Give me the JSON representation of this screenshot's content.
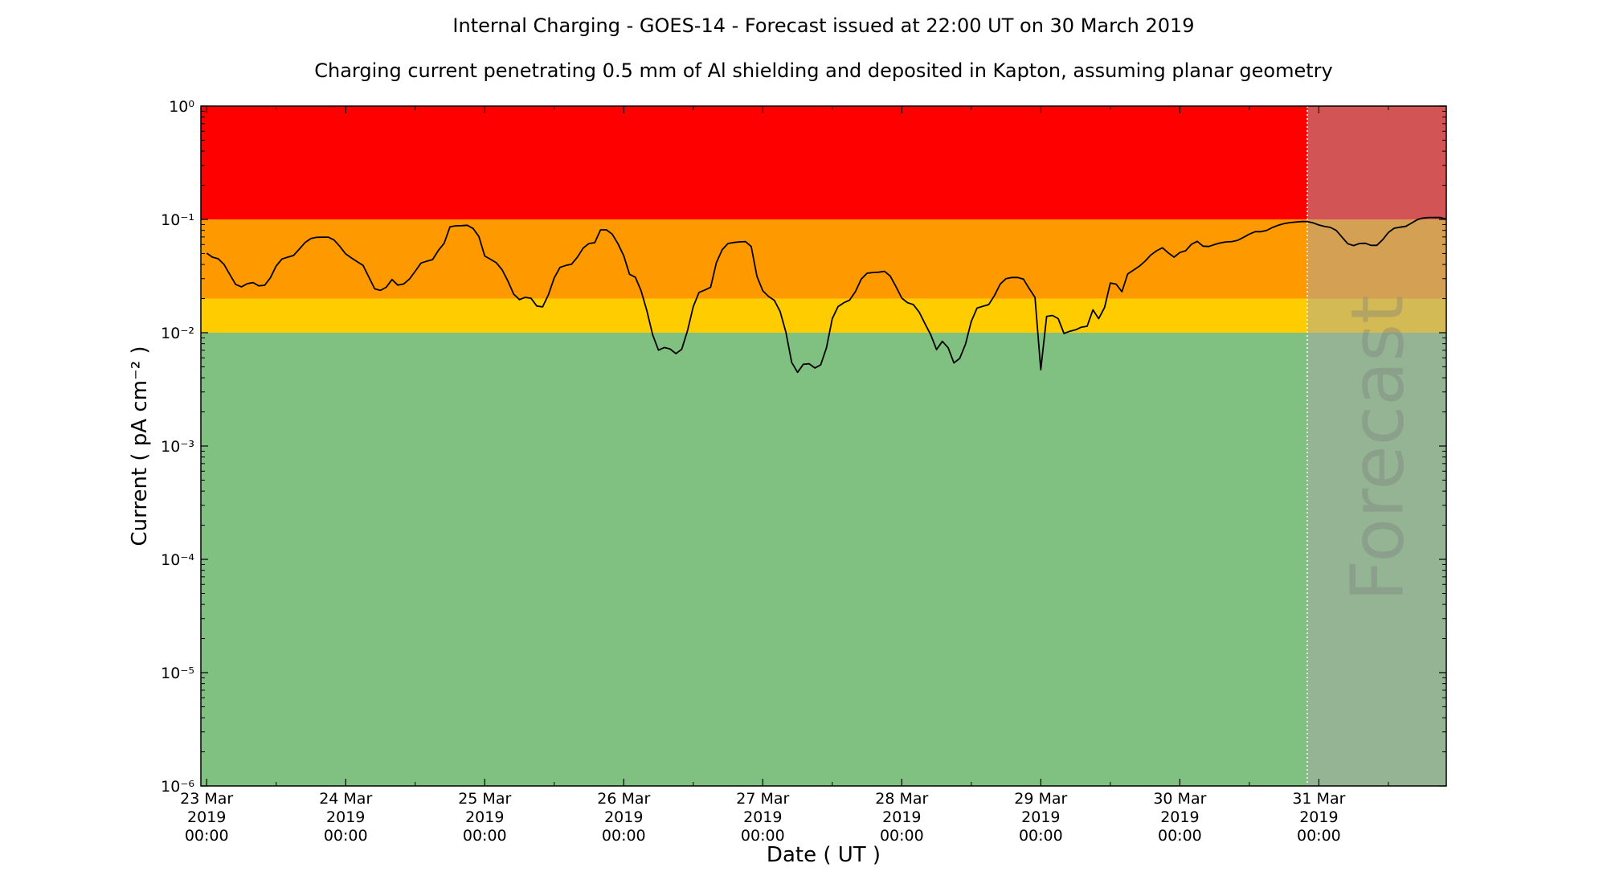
{
  "chart_data": {
    "type": "line",
    "title": "Internal Charging - GOES-14 - Forecast issued at 22:00 UT on 30 March 2019",
    "subtitle": "Charging current penetrating 0.5 mm of Al shielding and deposited in Kapton, assuming planar geometry",
    "xlabel": "Date ( UT )",
    "ylabel": "Current ( pA cm⁻² )",
    "yscale": "log",
    "ylim": [
      1e-06,
      1
    ],
    "xlim": [
      "2019-03-22 23:00",
      "2019-03-31 22:00"
    ],
    "grid": false,
    "y_ticks": [
      {
        "value": 1,
        "label": "10⁰"
      },
      {
        "value": 0.1,
        "label": "10⁻¹"
      },
      {
        "value": 0.01,
        "label": "10⁻²"
      },
      {
        "value": 0.001,
        "label": "10⁻³"
      },
      {
        "value": 0.0001,
        "label": "10⁻⁴"
      },
      {
        "value": 1e-05,
        "label": "10⁻⁵"
      },
      {
        "value": 1e-06,
        "label": "10⁻⁶"
      }
    ],
    "x_ticks": [
      {
        "date": "2019-03-23",
        "lines": [
          "23 Mar",
          "2019",
          "00:00"
        ]
      },
      {
        "date": "2019-03-24",
        "lines": [
          "24 Mar",
          "2019",
          "00:00"
        ]
      },
      {
        "date": "2019-03-25",
        "lines": [
          "25 Mar",
          "2019",
          "00:00"
        ]
      },
      {
        "date": "2019-03-26",
        "lines": [
          "26 Mar",
          "2019",
          "00:00"
        ]
      },
      {
        "date": "2019-03-27",
        "lines": [
          "27 Mar",
          "2019",
          "00:00"
        ]
      },
      {
        "date": "2019-03-28",
        "lines": [
          "28 Mar",
          "2019",
          "00:00"
        ]
      },
      {
        "date": "2019-03-29",
        "lines": [
          "29 Mar",
          "2019",
          "00:00"
        ]
      },
      {
        "date": "2019-03-30",
        "lines": [
          "30 Mar",
          "2019",
          "00:00"
        ]
      },
      {
        "date": "2019-03-31",
        "lines": [
          "31 Mar",
          "2019",
          "00:00"
        ]
      }
    ],
    "bands": [
      {
        "from": 0.1,
        "to": 1,
        "color": "#ff0000"
      },
      {
        "from": 0.02,
        "to": 0.1,
        "color": "#ff9900"
      },
      {
        "from": 0.01,
        "to": 0.02,
        "color": "#ffcc00"
      },
      {
        "from": 1e-06,
        "to": 0.01,
        "color": "#80c080"
      }
    ],
    "forecast": {
      "start": "2019-03-30 22:00",
      "label": "Forecast",
      "overlay_color": "#a7a7a7",
      "divider_color": "#ffffff"
    },
    "line_color": "#000000",
    "series": [
      {
        "days": [
          {
            "date": "2019-03-23",
            "hourly": [
              0.0504,
              0.0464,
              0.0449,
              0.0401,
              0.0326,
              0.0267,
              0.0254,
              0.0271,
              0.0277,
              0.0259,
              0.0262,
              0.0305,
              0.0388,
              0.0447,
              0.0464,
              0.048,
              0.0547,
              0.0626,
              0.0679,
              0.0695,
              0.0697,
              0.0697,
              0.0657,
              0.0577
            ]
          },
          {
            "date": "2019-03-24",
            "hourly": [
              0.0496,
              0.0457,
              0.0423,
              0.0392,
              0.0309,
              0.0244,
              0.0236,
              0.0252,
              0.0295,
              0.0263,
              0.0269,
              0.0297,
              0.0348,
              0.0412,
              0.0428,
              0.0442,
              0.0532,
              0.0616,
              0.0859,
              0.0877,
              0.088,
              0.0888,
              0.0832,
              0.0706
            ]
          },
          {
            "date": "2019-03-25",
            "hourly": [
              0.0475,
              0.0445,
              0.0414,
              0.0359,
              0.0286,
              0.0219,
              0.0196,
              0.0205,
              0.0201,
              0.0172,
              0.0169,
              0.0217,
              0.0305,
              0.0377,
              0.0392,
              0.0403,
              0.0464,
              0.0558,
              0.0613,
              0.0623,
              0.0809,
              0.0809,
              0.0742,
              0.061
            ]
          },
          {
            "date": "2019-03-26",
            "hourly": [
              0.0477,
              0.0328,
              0.0309,
              0.0234,
              0.0156,
              0.00957,
              0.00702,
              0.00741,
              0.00718,
              0.00654,
              0.00713,
              0.01038,
              0.017,
              0.0227,
              0.0238,
              0.0252,
              0.0416,
              0.054,
              0.0613,
              0.0626,
              0.0633,
              0.0637,
              0.0577,
              0.0314
            ]
          },
          {
            "date": "2019-03-27",
            "hourly": [
              0.0235,
              0.0209,
              0.0193,
              0.0154,
              0.0101,
              0.00547,
              0.00447,
              0.00526,
              0.00532,
              0.00488,
              0.0052,
              0.00737,
              0.0133,
              0.017,
              0.0184,
              0.0194,
              0.0231,
              0.0297,
              0.0335,
              0.034,
              0.0342,
              0.0348,
              0.0317,
              0.0255
            ]
          },
          {
            "date": "2019-03-28",
            "hourly": [
              0.0202,
              0.0184,
              0.0177,
              0.0152,
              0.012,
              0.00957,
              0.0071,
              0.0084,
              0.00737,
              0.00541,
              0.00593,
              0.00792,
              0.01257,
              0.0165,
              0.0171,
              0.0177,
              0.0213,
              0.0269,
              0.03,
              0.0307,
              0.0307,
              0.0297,
              0.0245,
              0.0205
            ]
          },
          {
            "date": "2019-03-29",
            "hourly": [
              0.00472,
              0.0139,
              0.0142,
              0.0133,
              0.00984,
              0.0103,
              0.0106,
              0.0112,
              0.0114,
              0.0159,
              0.0133,
              0.0167,
              0.0275,
              0.0268,
              0.023,
              0.033,
              0.0357,
              0.0386,
              0.0428,
              0.0485,
              0.0529,
              0.0562,
              0.0506,
              0.0464
            ]
          },
          {
            "date": "2019-03-30",
            "hourly": [
              0.051,
              0.0529,
              0.0603,
              0.064,
              0.0581,
              0.0577,
              0.06,
              0.062,
              0.0633,
              0.0637,
              0.0654,
              0.0695,
              0.0742,
              0.0779,
              0.0779,
              0.08,
              0.0849,
              0.0888,
              0.0917,
              0.0937,
              0.0947,
              0.0957,
              0.0957,
              0.0932
            ]
          },
          {
            "date": "2019-03-31",
            "hourly": [
              0.0892,
              0.0868,
              0.0849,
              0.08,
              0.0697,
              0.061,
              0.0587,
              0.0613,
              0.0616,
              0.059,
              0.059,
              0.0661,
              0.0766,
              0.0836,
              0.0853,
              0.0868,
              0.0927,
              0.0995,
              0.1028,
              0.104,
              0.1038,
              0.1038,
              0.1005
            ]
          }
        ]
      }
    ]
  }
}
